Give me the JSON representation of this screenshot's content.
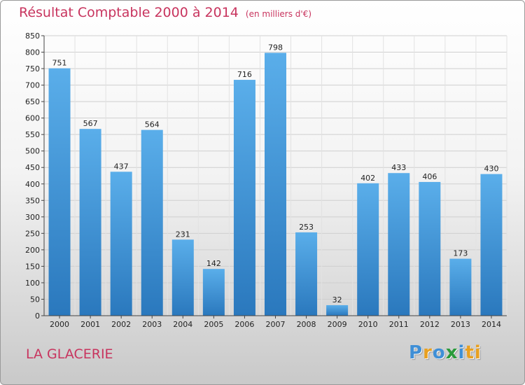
{
  "chart_data": {
    "type": "bar",
    "title": "Résultat Comptable 2000 à 2014",
    "subtitle": "(en milliers d'€)",
    "categories": [
      "2000",
      "2001",
      "2002",
      "2003",
      "2004",
      "2005",
      "2006",
      "2007",
      "2008",
      "2009",
      "2010",
      "2011",
      "2012",
      "2013",
      "2014"
    ],
    "values": [
      751,
      567,
      437,
      564,
      231,
      142,
      716,
      798,
      253,
      32,
      402,
      433,
      406,
      173,
      430
    ],
    "xlabel": "",
    "ylabel": "",
    "ylim": [
      0,
      850
    ],
    "yticks": [
      0,
      50,
      100,
      150,
      200,
      250,
      300,
      350,
      400,
      450,
      500,
      550,
      600,
      650,
      700,
      750,
      800,
      850
    ],
    "grid": true,
    "bar_color": "#3a8fd8"
  },
  "commune": "LA GLACERIE",
  "logo": {
    "letters": [
      "P",
      "r",
      "o",
      "x",
      "i",
      "ti"
    ]
  }
}
